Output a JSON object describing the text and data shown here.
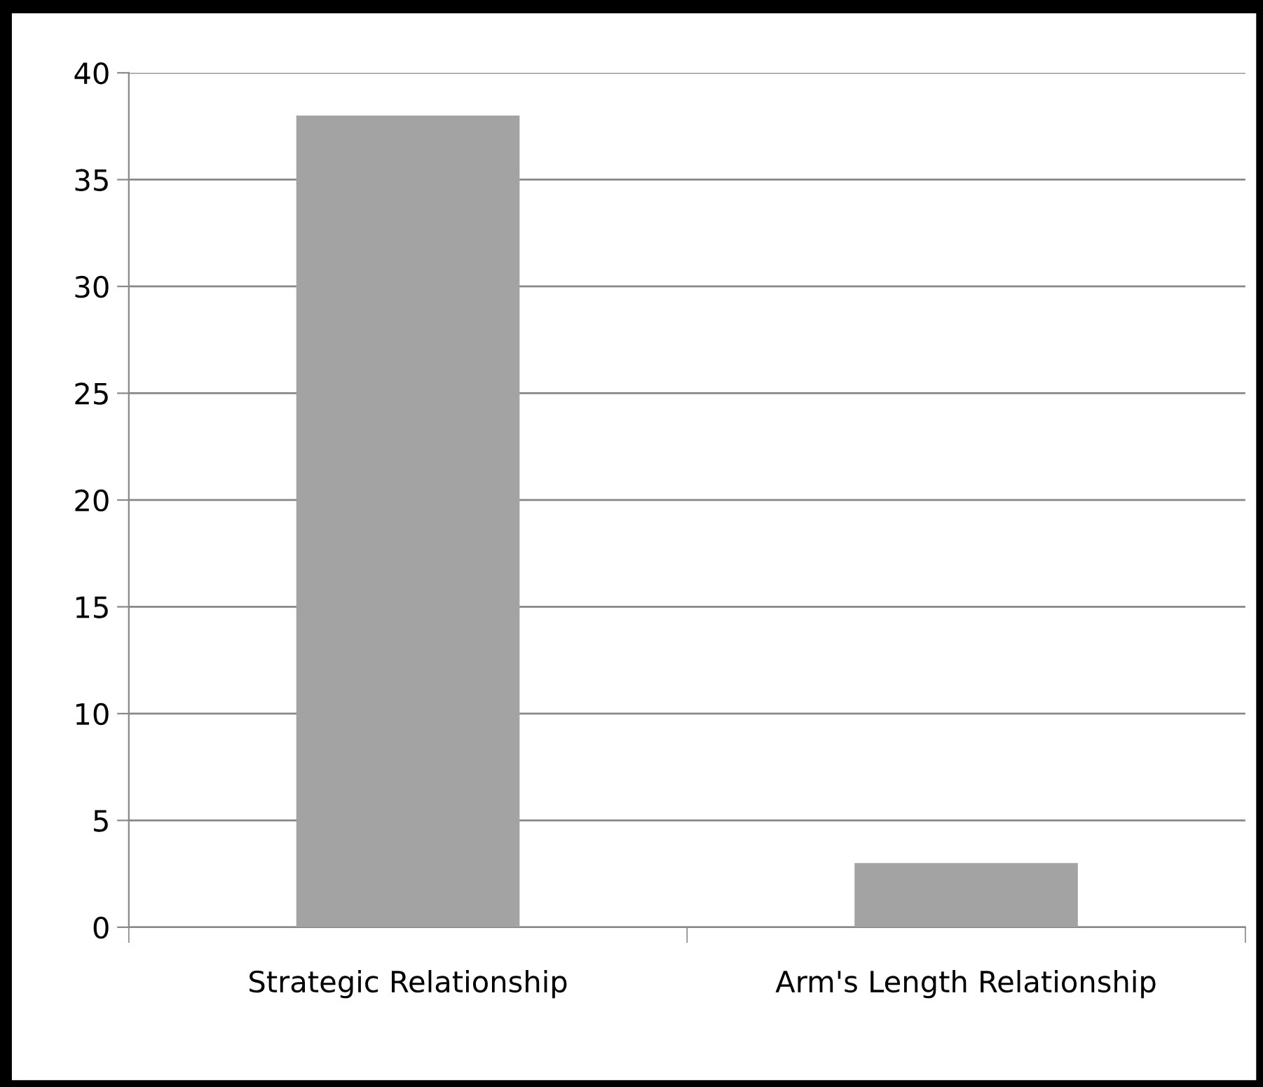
{
  "chart_data": {
    "type": "bar",
    "categories": [
      "Strategic Relationship",
      "Arm's Length Relationship"
    ],
    "values": [
      38,
      3
    ],
    "color": "#a3a3a3",
    "ylim": [
      0,
      40
    ],
    "yticks": [
      0,
      5,
      10,
      15,
      20,
      25,
      30,
      35,
      40
    ],
    "grid": "y"
  }
}
